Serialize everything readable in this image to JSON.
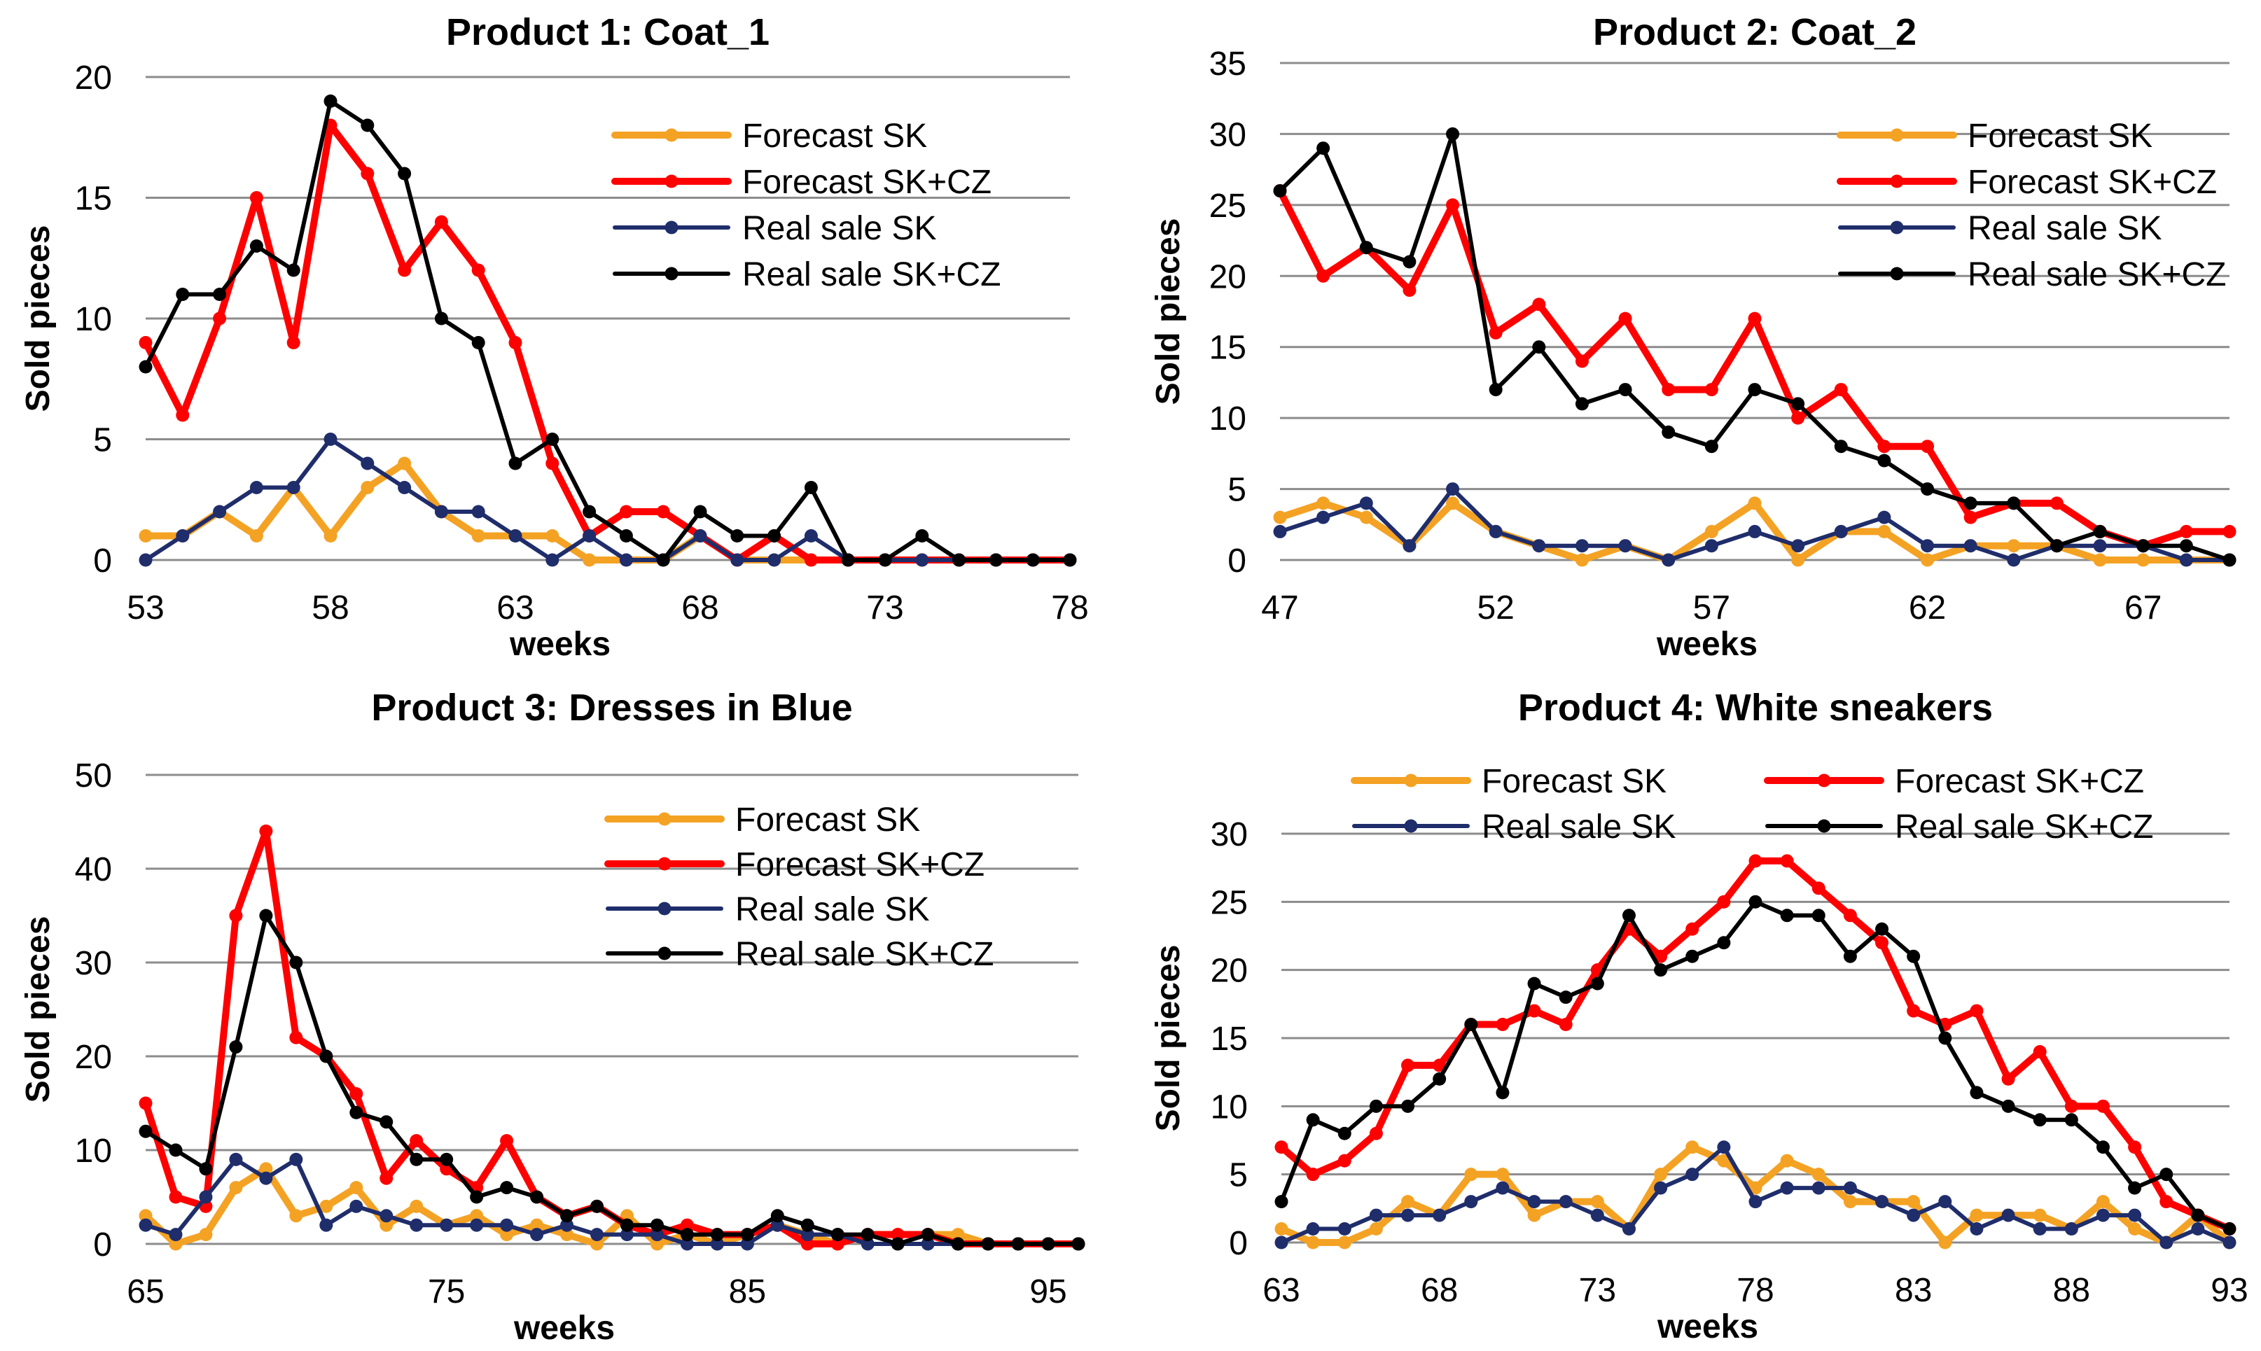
{
  "colors": {
    "forecast_sk": "#F4A224",
    "forecast_skcz": "#FF0000",
    "real_sk": "#1F2D6B",
    "real_skcz": "#000000",
    "grid": "#8C8C8C",
    "text": "#000000"
  },
  "chart_data": [
    {
      "type": "line",
      "title": "Product 1: Coat_1",
      "xlabel": "weeks",
      "ylabel": "Sold pieces",
      "xlim": [
        53,
        78
      ],
      "ylim": [
        0,
        20
      ],
      "xticks": [
        53,
        58,
        63,
        68,
        73,
        78
      ],
      "yticks": [
        0,
        5,
        10,
        15,
        20
      ],
      "grid": "horizontal",
      "legend": "top-right, single column",
      "x": [
        53,
        54,
        55,
        56,
        57,
        58,
        59,
        60,
        61,
        62,
        63,
        64,
        65,
        66,
        67,
        68,
        69,
        70,
        71,
        72,
        73,
        74,
        75,
        76,
        77,
        78
      ],
      "series": [
        {
          "key": "forecast_sk",
          "name": "Forecast SK",
          "values": [
            1,
            1,
            2,
            1,
            3,
            1,
            3,
            4,
            2,
            1,
            1,
            1,
            0,
            0,
            0,
            1,
            0,
            0,
            0,
            0,
            0,
            0,
            0,
            0,
            0,
            0
          ]
        },
        {
          "key": "forecast_skcz",
          "name": "Forecast SK+CZ",
          "values": [
            9,
            6,
            10,
            15,
            9,
            18,
            16,
            12,
            14,
            12,
            9,
            4,
            1,
            2,
            2,
            1,
            0,
            1,
            0,
            0,
            0,
            0,
            0,
            0,
            0,
            0
          ]
        },
        {
          "key": "real_sk",
          "name": "Real sale SK",
          "values": [
            0,
            1,
            2,
            3,
            3,
            5,
            4,
            3,
            2,
            2,
            1,
            0,
            1,
            0,
            0,
            1,
            0,
            0,
            1,
            0,
            0,
            0,
            0,
            0,
            0,
            0
          ]
        },
        {
          "key": "real_skcz",
          "name": "Real sale SK+CZ",
          "values": [
            8,
            11,
            11,
            13,
            12,
            19,
            18,
            16,
            10,
            9,
            4,
            5,
            2,
            1,
            0,
            2,
            1,
            1,
            3,
            0,
            0,
            1,
            0,
            0,
            0,
            0
          ]
        }
      ]
    },
    {
      "type": "line",
      "title": "Product 2: Coat_2",
      "xlabel": "weeks",
      "ylabel": "Sold pieces",
      "xlim": [
        47,
        69
      ],
      "ylim": [
        0,
        35
      ],
      "xticks": [
        47,
        52,
        57,
        62,
        67
      ],
      "yticks": [
        0,
        5,
        10,
        15,
        20,
        25,
        30,
        35
      ],
      "grid": "horizontal",
      "legend": "top-right, single column",
      "x": [
        47,
        48,
        49,
        50,
        51,
        52,
        53,
        54,
        55,
        56,
        57,
        58,
        59,
        60,
        61,
        62,
        63,
        64,
        65,
        66,
        67,
        68,
        69
      ],
      "series": [
        {
          "key": "forecast_sk",
          "name": "Forecast SK",
          "values": [
            3,
            4,
            3,
            1,
            4,
            2,
            1,
            0,
            1,
            0,
            2,
            4,
            0,
            2,
            2,
            0,
            1,
            1,
            1,
            0,
            0,
            0,
            0
          ]
        },
        {
          "key": "forecast_skcz",
          "name": "Forecast SK+CZ",
          "values": [
            26,
            20,
            22,
            19,
            25,
            16,
            18,
            14,
            17,
            12,
            12,
            17,
            10,
            12,
            8,
            8,
            3,
            4,
            4,
            2,
            1,
            2,
            2
          ]
        },
        {
          "key": "real_sk",
          "name": "Real sale SK",
          "values": [
            2,
            3,
            4,
            1,
            5,
            2,
            1,
            1,
            1,
            0,
            1,
            2,
            1,
            2,
            3,
            1,
            1,
            0,
            1,
            1,
            1,
            0,
            0
          ]
        },
        {
          "key": "real_skcz",
          "name": "Real sale SK+CZ",
          "values": [
            26,
            29,
            22,
            21,
            30,
            12,
            15,
            11,
            12,
            9,
            8,
            12,
            11,
            8,
            7,
            5,
            4,
            4,
            1,
            2,
            1,
            1,
            0
          ]
        }
      ]
    },
    {
      "type": "line",
      "title": "Product 3: Dresses in Blue",
      "xlabel": "weeks",
      "ylabel": "Sold pieces",
      "xlim": [
        65,
        96
      ],
      "ylim": [
        0,
        50
      ],
      "xticks": [
        65,
        75,
        85,
        95
      ],
      "yticks": [
        0,
        10,
        20,
        30,
        40,
        50
      ],
      "grid": "horizontal",
      "legend": "top-right, single column",
      "x": [
        65,
        66,
        67,
        68,
        69,
        70,
        71,
        72,
        73,
        74,
        75,
        76,
        77,
        78,
        79,
        80,
        81,
        82,
        83,
        84,
        85,
        86,
        87,
        88,
        89,
        90,
        91,
        92,
        93,
        94,
        95,
        96
      ],
      "series": [
        {
          "key": "forecast_sk",
          "name": "Forecast SK",
          "values": [
            3,
            0,
            1,
            6,
            8,
            3,
            4,
            6,
            2,
            4,
            2,
            3,
            1,
            2,
            1,
            0,
            3,
            0,
            1,
            0,
            1,
            2,
            1,
            0,
            1,
            1,
            1,
            1,
            0,
            0,
            0,
            0
          ]
        },
        {
          "key": "forecast_skcz",
          "name": "Forecast SK+CZ",
          "values": [
            15,
            5,
            4,
            35,
            44,
            22,
            20,
            16,
            7,
            11,
            8,
            6,
            11,
            5,
            3,
            4,
            2,
            1,
            2,
            1,
            1,
            2,
            0,
            0,
            1,
            1,
            1,
            0,
            0,
            0,
            0,
            0
          ]
        },
        {
          "key": "real_sk",
          "name": "Real sale SK",
          "values": [
            2,
            1,
            5,
            9,
            7,
            9,
            2,
            4,
            3,
            2,
            2,
            2,
            2,
            1,
            2,
            1,
            1,
            1,
            0,
            0,
            0,
            2,
            1,
            1,
            0,
            0,
            0,
            0,
            0,
            0,
            0,
            0
          ]
        },
        {
          "key": "real_skcz",
          "name": "Real sale SK+CZ",
          "values": [
            12,
            10,
            8,
            21,
            35,
            30,
            20,
            14,
            13,
            9,
            9,
            5,
            6,
            5,
            3,
            4,
            2,
            2,
            1,
            1,
            1,
            3,
            2,
            1,
            1,
            0,
            1,
            0,
            0,
            0,
            0,
            0
          ]
        }
      ]
    },
    {
      "type": "line",
      "title": "Product 4: White sneakers",
      "xlabel": "weeks",
      "ylabel": "Sold pieces",
      "xlim": [
        63,
        93
      ],
      "ylim": [
        0,
        30
      ],
      "xticks": [
        63,
        68,
        73,
        78,
        83,
        88,
        93
      ],
      "yticks": [
        0,
        5,
        10,
        15,
        20,
        25,
        30
      ],
      "grid": "horizontal",
      "legend": "top, two columns",
      "x": [
        63,
        64,
        65,
        66,
        67,
        68,
        69,
        70,
        71,
        72,
        73,
        74,
        75,
        76,
        77,
        78,
        79,
        80,
        81,
        82,
        83,
        84,
        85,
        86,
        87,
        88,
        89,
        90,
        91,
        92,
        93
      ],
      "series": [
        {
          "key": "forecast_sk",
          "name": "Forecast SK",
          "values": [
            1,
            0,
            0,
            1,
            3,
            2,
            5,
            5,
            2,
            3,
            3,
            1,
            5,
            7,
            6,
            4,
            6,
            5,
            3,
            3,
            3,
            0,
            2,
            2,
            2,
            1,
            3,
            1,
            0,
            2,
            0
          ]
        },
        {
          "key": "forecast_skcz",
          "name": "Forecast SK+CZ",
          "values": [
            7,
            5,
            6,
            8,
            13,
            13,
            16,
            16,
            17,
            16,
            20,
            23,
            21,
            23,
            25,
            28,
            28,
            26,
            24,
            22,
            17,
            16,
            17,
            12,
            14,
            10,
            10,
            7,
            3,
            2,
            1
          ]
        },
        {
          "key": "real_sk",
          "name": "Real sale SK",
          "values": [
            0,
            1,
            1,
            2,
            2,
            2,
            3,
            4,
            3,
            3,
            2,
            1,
            4,
            5,
            7,
            3,
            4,
            4,
            4,
            3,
            2,
            3,
            1,
            2,
            1,
            1,
            2,
            2,
            0,
            1,
            0
          ]
        },
        {
          "key": "real_skcz",
          "name": "Real sale SK+CZ",
          "values": [
            3,
            9,
            8,
            10,
            10,
            12,
            16,
            11,
            19,
            18,
            19,
            24,
            20,
            21,
            22,
            25,
            24,
            24,
            21,
            23,
            21,
            15,
            11,
            10,
            9,
            9,
            7,
            4,
            5,
            2,
            1
          ]
        }
      ]
    }
  ]
}
